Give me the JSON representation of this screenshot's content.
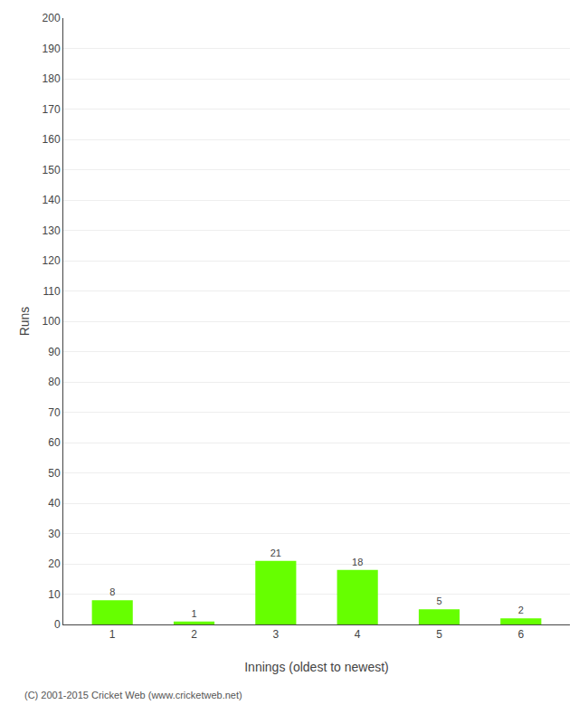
{
  "chart_data": {
    "type": "bar",
    "x": [
      1,
      2,
      3,
      4,
      5,
      6
    ],
    "values": [
      8,
      1,
      21,
      18,
      5,
      2
    ],
    "color": "#66ff00",
    "xlabel": "Innings (oldest to newest)",
    "ylabel": "Runs",
    "xlim": [
      0.4,
      6.6
    ],
    "xticks": [
      1,
      2,
      3,
      4,
      5,
      6
    ],
    "ylim": [
      0,
      200
    ],
    "yticks": [
      0,
      10,
      20,
      30,
      40,
      50,
      60,
      70,
      80,
      90,
      100,
      110,
      120,
      130,
      140,
      150,
      160,
      170,
      180,
      190,
      200
    ],
    "grid": true,
    "data_labels": true,
    "annotations": [
      "(C) 2001-2015 Cricket Web (www.cricketweb.net)"
    ]
  }
}
